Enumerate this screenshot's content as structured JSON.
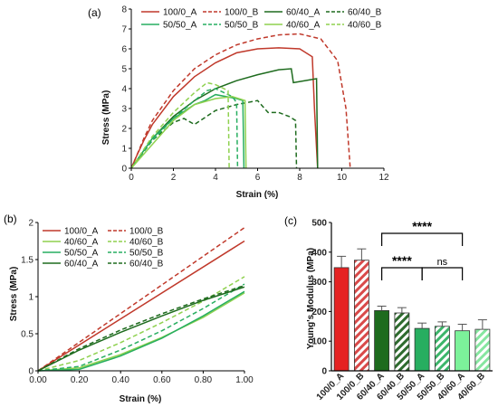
{
  "chart_data": [
    {
      "type": "line",
      "panel": "(a)",
      "xlabel": "Strain (%)",
      "ylabel": "Stress (MPa)",
      "xlim": [
        0,
        12
      ],
      "ylim": [
        0,
        8
      ],
      "xticks": [
        "0",
        "2",
        "4",
        "6",
        "8",
        "10",
        "12"
      ],
      "yticks": [
        "0",
        "1",
        "2",
        "3",
        "4",
        "5",
        "6",
        "7",
        "8"
      ],
      "grid": false,
      "legend": "top",
      "series": [
        {
          "name": "100/0_A",
          "color": "#c0392b",
          "dash": false,
          "x": [
            0,
            0.2,
            0.6,
            1.0,
            2.0,
            3.0,
            4.0,
            5.0,
            6.0,
            7.0,
            8.0,
            8.6,
            8.7,
            8.8,
            8.85
          ],
          "y": [
            0,
            0.5,
            1.4,
            2.2,
            3.6,
            4.6,
            5.3,
            5.8,
            6.0,
            6.05,
            6.0,
            5.6,
            3.0,
            1.0,
            0
          ]
        },
        {
          "name": "100/0_B",
          "color": "#c0392b",
          "dash": true,
          "x": [
            0,
            0.2,
            0.6,
            1.0,
            2.0,
            3.0,
            4.0,
            5.0,
            6.0,
            7.0,
            8.0,
            9.0,
            9.8,
            10.2,
            10.4
          ],
          "y": [
            0,
            0.5,
            1.5,
            2.4,
            3.9,
            5.0,
            5.7,
            6.2,
            6.5,
            6.7,
            6.75,
            6.5,
            5.4,
            3.0,
            0
          ]
        },
        {
          "name": "60/40_A",
          "color": "#1e6b1e",
          "dash": false,
          "x": [
            0,
            1.0,
            2.0,
            3.0,
            4.0,
            5.0,
            6.0,
            7.0,
            7.6,
            7.7,
            8.8,
            8.85
          ],
          "y": [
            0,
            1.5,
            2.6,
            3.4,
            4.0,
            4.4,
            4.7,
            4.95,
            5.0,
            4.3,
            4.5,
            0
          ]
        },
        {
          "name": "60/40_B",
          "color": "#1e6b1e",
          "dash": true,
          "x": [
            0,
            1.0,
            2.0,
            2.5,
            3.0,
            4.0,
            5.0,
            6.0,
            6.5,
            7.0,
            7.5,
            7.8,
            7.85
          ],
          "y": [
            0,
            1.4,
            2.3,
            2.5,
            2.2,
            2.9,
            3.2,
            3.4,
            2.8,
            2.8,
            2.6,
            2.4,
            0
          ]
        },
        {
          "name": "50/50_A",
          "color": "#27ae60",
          "dash": false,
          "x": [
            0,
            1.0,
            2.0,
            3.0,
            3.5,
            4.0,
            5.0,
            5.3,
            5.35
          ],
          "y": [
            0,
            1.5,
            2.5,
            3.2,
            3.4,
            3.7,
            3.5,
            3.4,
            0
          ]
        },
        {
          "name": "50/50_B",
          "color": "#27ae60",
          "dash": true,
          "x": [
            0,
            1.0,
            2.0,
            3.0,
            3.6,
            4.0,
            4.8,
            5.0,
            5.05
          ],
          "y": [
            0,
            1.4,
            2.5,
            3.4,
            3.9,
            4.0,
            3.6,
            3.3,
            0
          ]
        },
        {
          "name": "40/60_A",
          "color": "#8fd14f",
          "dash": false,
          "x": [
            0,
            1.0,
            2.0,
            3.0,
            4.0,
            4.8,
            5.4,
            5.45
          ],
          "y": [
            0,
            1.2,
            2.4,
            3.2,
            3.5,
            3.6,
            3.4,
            0
          ]
        },
        {
          "name": "40/60_B",
          "color": "#8fd14f",
          "dash": true,
          "x": [
            0,
            1.0,
            2.0,
            3.0,
            3.6,
            4.0,
            4.6,
            4.65
          ],
          "y": [
            0,
            1.6,
            2.8,
            3.8,
            4.3,
            4.2,
            3.9,
            0
          ]
        }
      ]
    },
    {
      "type": "line",
      "panel": "(b)",
      "xlabel": "Strain (%)",
      "ylabel": "Stress (MPa)",
      "xlim": [
        0,
        1.0
      ],
      "ylim": [
        0,
        2
      ],
      "xticks": [
        "0.00",
        "0.20",
        "0.40",
        "0.60",
        "0.80",
        "1.00"
      ],
      "yticks": [
        "0",
        "0.5",
        "1",
        "1.5",
        "2"
      ],
      "grid": false,
      "legend": "top-left",
      "series": [
        {
          "name": "100/0_A",
          "color": "#c0392b",
          "dash": false,
          "x": [
            0,
            1.0
          ],
          "y": [
            0,
            1.75
          ]
        },
        {
          "name": "100/0_B",
          "color": "#c0392b",
          "dash": true,
          "x": [
            0,
            1.0
          ],
          "y": [
            0,
            1.93
          ]
        },
        {
          "name": "40/60_A",
          "color": "#8fd14f",
          "dash": false,
          "x": [
            0,
            0.2,
            0.4,
            0.6,
            0.8,
            1.0
          ],
          "y": [
            0,
            0.04,
            0.22,
            0.45,
            0.72,
            1.05
          ]
        },
        {
          "name": "40/60_B",
          "color": "#8fd14f",
          "dash": true,
          "x": [
            0,
            0.2,
            0.4,
            0.6,
            0.8,
            1.0
          ],
          "y": [
            0,
            0.14,
            0.38,
            0.65,
            0.94,
            1.27
          ]
        },
        {
          "name": "50/50_A",
          "color": "#27ae60",
          "dash": false,
          "x": [
            0,
            0.2,
            0.4,
            0.6,
            0.8,
            1.0
          ],
          "y": [
            0,
            0.02,
            0.2,
            0.44,
            0.74,
            1.07
          ]
        },
        {
          "name": "50/50_B",
          "color": "#27ae60",
          "dash": true,
          "x": [
            0,
            0.2,
            0.4,
            0.6,
            0.8,
            1.0
          ],
          "y": [
            0,
            0.06,
            0.28,
            0.54,
            0.84,
            1.17
          ]
        },
        {
          "name": "60/40_A",
          "color": "#1e6b1e",
          "dash": false,
          "x": [
            0,
            0.2,
            0.4,
            0.6,
            0.8,
            1.0
          ],
          "y": [
            0,
            0.28,
            0.52,
            0.74,
            0.95,
            1.13
          ]
        },
        {
          "name": "60/40_B",
          "color": "#1e6b1e",
          "dash": true,
          "x": [
            0,
            0.2,
            0.4,
            0.6,
            0.8,
            1.0
          ],
          "y": [
            0,
            0.3,
            0.55,
            0.77,
            0.97,
            1.15
          ]
        }
      ]
    },
    {
      "type": "bar",
      "panel": "(c)",
      "ylabel": "Young's Modulus (MPa)",
      "ylim": [
        0,
        500
      ],
      "yticks": [
        "0",
        "100",
        "200",
        "300",
        "400",
        "500"
      ],
      "categories": [
        "100/0_A",
        "100/0_B",
        "60/40_A",
        "60/40_B",
        "50/50_A",
        "50/50_B",
        "40/60_A",
        "40/60_B"
      ],
      "values": [
        348,
        373,
        203,
        195,
        143,
        150,
        135,
        140
      ],
      "errors": [
        38,
        38,
        15,
        18,
        18,
        15,
        22,
        32
      ],
      "colors": [
        "#e52222",
        "#e56b6b",
        "#1e6b1e",
        "#6b9b6b",
        "#27ae60",
        "#7fc99a",
        "#7cf29a",
        "#b6f5c6"
      ],
      "hatched": [
        false,
        true,
        false,
        true,
        false,
        true,
        false,
        true
      ],
      "significance": [
        {
          "from": "60/40_A",
          "to": "40/60_A",
          "label": "****"
        },
        {
          "from": "60/40_A",
          "to": "50/50_A",
          "label": "****"
        },
        {
          "from": "50/50_A",
          "to": "40/60_A",
          "label": "ns"
        }
      ]
    }
  ]
}
